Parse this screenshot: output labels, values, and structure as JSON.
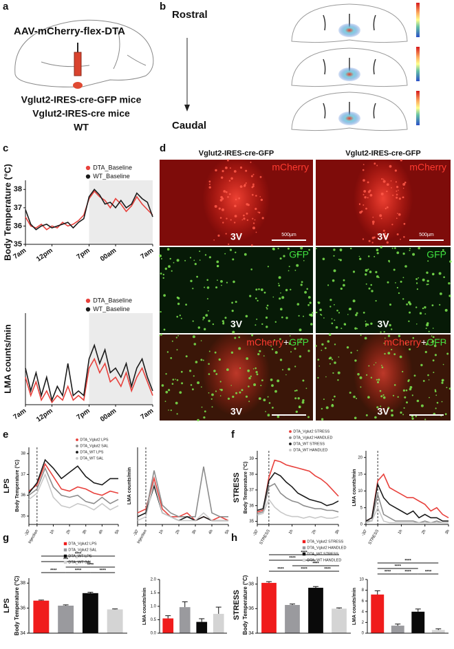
{
  "panel_labels": [
    "a",
    "b",
    "c",
    "d",
    "e",
    "f",
    "g",
    "h"
  ],
  "schematic": {
    "virus": "AAV-mCherry-flex-DTA",
    "mice": [
      "Vglut2-IRES-cre-GFP mice",
      "Vglut2-IRES-cre mice",
      "WT"
    ]
  },
  "sections": {
    "top": "Rostral",
    "bottom": "Caudal"
  },
  "histology": {
    "columns": [
      "Vglut2-IRES-cre-GFP",
      "Vglut2-IRES-cre-GFP"
    ],
    "channels": [
      "mCherry",
      "GFP"
    ],
    "plus": "+",
    "landmark": "3V",
    "scale_bar": "500µm"
  },
  "chart_data": [
    {
      "type": "line",
      "ylabel": "Body Temperature (°C)",
      "xlim": [
        0,
        24
      ],
      "ylim": [
        35,
        38.5
      ],
      "xticks": [
        {
          "value": 0,
          "label": "7am"
        },
        {
          "value": 5,
          "label": "12pm"
        },
        {
          "value": 12,
          "label": "7pm"
        },
        {
          "value": 17,
          "label": "00am"
        },
        {
          "value": 24,
          "label": "7am"
        }
      ],
      "yticks": [
        35,
        36,
        37,
        38
      ],
      "shade": [
        12,
        24
      ],
      "x": [
        0,
        1,
        2,
        3,
        4,
        5,
        6,
        7,
        8,
        9,
        10,
        11,
        12,
        13,
        14,
        15,
        16,
        17,
        18,
        19,
        20,
        21,
        22,
        23,
        24
      ],
      "series": [
        {
          "name": "DTA_Baseline",
          "color": "#e8413c",
          "values": [
            36.5,
            36.0,
            35.9,
            36.1,
            35.8,
            36.0,
            35.9,
            36.2,
            36.0,
            36.1,
            36.3,
            36.6,
            37.5,
            37.9,
            37.6,
            37.4,
            37.0,
            37.5,
            37.2,
            36.8,
            37.1,
            37.6,
            37.2,
            36.9,
            36.6
          ]
        },
        {
          "name": "WT_Baseline",
          "color": "#1a1a1a",
          "values": [
            36.9,
            36.1,
            35.8,
            36.0,
            36.1,
            35.9,
            36.0,
            36.1,
            36.2,
            35.9,
            36.2,
            36.4,
            37.6,
            38.0,
            37.7,
            37.2,
            37.3,
            37.0,
            37.4,
            37.0,
            37.2,
            37.8,
            37.5,
            37.3,
            36.5
          ]
        }
      ]
    },
    {
      "type": "line",
      "ylabel": "LMA counts/min",
      "xlim": [
        0,
        24
      ],
      "ylim": [
        0,
        20
      ],
      "xticks": [
        {
          "value": 0,
          "label": "7am"
        },
        {
          "value": 5,
          "label": "12pm"
        },
        {
          "value": 12,
          "label": "7pm"
        },
        {
          "value": 17,
          "label": "00am"
        },
        {
          "value": 24,
          "label": "7am"
        }
      ],
      "shade": [
        12,
        24
      ],
      "x": [
        0,
        1,
        2,
        3,
        4,
        5,
        6,
        7,
        8,
        9,
        10,
        11,
        12,
        13,
        14,
        15,
        16,
        17,
        18,
        19,
        20,
        21,
        22,
        23,
        24
      ],
      "series": [
        {
          "name": "DTA_Baseline",
          "color": "#e8413c",
          "values": [
            6,
            2,
            5,
            1,
            3,
            0.5,
            2,
            1,
            4,
            1,
            2,
            1,
            8,
            10,
            7,
            9,
            5,
            6,
            4,
            7,
            3,
            6,
            8,
            5,
            2
          ]
        },
        {
          "name": "WT_Baseline",
          "color": "#1a1a1a",
          "values": [
            8,
            3,
            7,
            2,
            6,
            1,
            4,
            2,
            9,
            2,
            3,
            2,
            10,
            13,
            9,
            12,
            7,
            8,
            6,
            9,
            4,
            8,
            10,
            6,
            3
          ]
        }
      ]
    },
    {
      "type": "line",
      "side_label": "LPS",
      "ylabel": "Body Temperature (°C)",
      "xlim": [
        -30,
        300
      ],
      "ylim": [
        34.6,
        38.3
      ],
      "xticks": [
        {
          "value": -30,
          "label": "-30'"
        },
        {
          "value": 0,
          "label": "Injection"
        },
        {
          "value": 60,
          "label": "1h"
        },
        {
          "value": 120,
          "label": "2h"
        },
        {
          "value": 180,
          "label": "3h"
        },
        {
          "value": 240,
          "label": "4h"
        },
        {
          "value": 300,
          "label": "5h"
        }
      ],
      "yticks": [
        35,
        36,
        37,
        38
      ],
      "vline": 0,
      "x": [
        -30,
        0,
        30,
        60,
        90,
        120,
        150,
        180,
        210,
        240,
        270,
        300
      ],
      "series": [
        {
          "name": "DTA_Vglut2 LPS",
          "color": "#e8413c",
          "values": [
            36.2,
            36.5,
            37.5,
            36.9,
            36.3,
            36.2,
            36.4,
            36.3,
            36.1,
            36.0,
            36.2,
            36.1
          ]
        },
        {
          "name": "DTA_Vglut2 SAL",
          "color": "#8c8c8c",
          "values": [
            36.0,
            36.3,
            37.3,
            36.4,
            36.0,
            35.9,
            36.0,
            35.7,
            35.6,
            35.9,
            35.6,
            35.8
          ]
        },
        {
          "name": "DTA_WT LPS",
          "color": "#1a1a1a",
          "values": [
            36.1,
            36.6,
            37.7,
            37.3,
            36.8,
            37.1,
            37.4,
            36.9,
            36.6,
            36.5,
            36.8,
            36.8
          ]
        },
        {
          "name": "DTA_WT SAL",
          "color": "#c8c8c8",
          "values": [
            35.8,
            36.1,
            37.0,
            35.9,
            35.5,
            35.4,
            35.6,
            35.5,
            35.3,
            35.6,
            35.3,
            35.5
          ]
        }
      ]
    },
    {
      "type": "line",
      "ylabel": "LMA counts/min",
      "xlim": [
        -30,
        300
      ],
      "ylim": [
        0,
        20
      ],
      "xticks": [
        {
          "value": -30,
          "label": "-30'"
        },
        {
          "value": 0,
          "label": "Injection"
        },
        {
          "value": 60,
          "label": "1h"
        },
        {
          "value": 120,
          "label": "2h"
        },
        {
          "value": 180,
          "label": "3h"
        },
        {
          "value": 240,
          "label": "4h"
        },
        {
          "value": 300,
          "label": "5h"
        }
      ],
      "vline": 0,
      "x": [
        -30,
        0,
        30,
        60,
        90,
        120,
        150,
        180,
        210,
        240,
        270,
        300
      ],
      "series": [
        {
          "color": "#e8413c",
          "values": [
            3,
            4,
            12,
            4,
            2,
            2,
            3,
            1,
            2,
            1,
            2,
            1
          ]
        },
        {
          "color": "#8c8c8c",
          "values": [
            2,
            3,
            14,
            5,
            3,
            2,
            2,
            2,
            15,
            3,
            2,
            2
          ]
        },
        {
          "color": "#1a1a1a",
          "values": [
            2,
            3,
            10,
            3,
            2,
            1,
            2,
            1,
            2,
            1,
            1,
            1
          ]
        },
        {
          "color": "#c8c8c8",
          "values": [
            1,
            2,
            11,
            3,
            2,
            1,
            1,
            1,
            3,
            1,
            1,
            1
          ]
        }
      ]
    },
    {
      "type": "line",
      "side_label": "STRESS",
      "ylabel": "Body Temperature (°C)",
      "xlim": [
        -30,
        180
      ],
      "ylim": [
        34.8,
        39.5
      ],
      "xticks": [
        {
          "value": -30,
          "label": "-30'"
        },
        {
          "value": 0,
          "label": "STRESS"
        },
        {
          "value": 60,
          "label": "1h"
        },
        {
          "value": 120,
          "label": "2h"
        },
        {
          "value": 180,
          "label": "3h"
        }
      ],
      "yticks": [
        35,
        36,
        37,
        38,
        39
      ],
      "vline": 0,
      "x": [
        -30,
        -15,
        0,
        15,
        30,
        45,
        60,
        75,
        90,
        105,
        120,
        135,
        150,
        165,
        180
      ],
      "series": [
        {
          "name": "DTA_Vglut2 STRESS",
          "color": "#e8413c",
          "values": [
            35.6,
            35.7,
            37.8,
            38.9,
            38.8,
            38.6,
            38.5,
            38.4,
            38.3,
            38.2,
            37.9,
            37.7,
            37.4,
            37.0,
            36.6
          ]
        },
        {
          "name": "DTA_Vglut2 HANDLED",
          "color": "#8c8c8c",
          "values": [
            35.5,
            35.6,
            37.2,
            37.4,
            36.8,
            36.5,
            36.3,
            36.2,
            36.0,
            35.9,
            35.8,
            35.8,
            35.7,
            35.7,
            35.6
          ]
        },
        {
          "name": "DTA_WT STRESS",
          "color": "#1a1a1a",
          "values": [
            35.7,
            35.8,
            37.6,
            38.1,
            37.9,
            37.5,
            37.2,
            36.8,
            36.6,
            36.4,
            36.3,
            36.2,
            36.0,
            36.1,
            36.3
          ]
        },
        {
          "name": "DTA_WT HANDLED",
          "color": "#c8c8c8",
          "values": [
            35.4,
            35.5,
            36.4,
            35.9,
            35.6,
            35.4,
            35.3,
            35.3,
            35.2,
            35.3,
            35.2,
            35.3,
            35.2,
            35.2,
            35.3
          ]
        }
      ]
    },
    {
      "type": "line",
      "ylabel": "LMA counts/min",
      "xlim": [
        -30,
        180
      ],
      "ylim": [
        0,
        22
      ],
      "xticks": [
        {
          "value": -30,
          "label": "-30'"
        },
        {
          "value": 0,
          "label": "STRESS"
        },
        {
          "value": 60,
          "label": "1h"
        },
        {
          "value": 120,
          "label": "2h"
        },
        {
          "value": 180,
          "label": "3h"
        }
      ],
      "yticks": [
        0,
        5,
        10,
        15,
        20
      ],
      "vline": 0,
      "x": [
        -30,
        -15,
        0,
        15,
        30,
        45,
        60,
        75,
        90,
        105,
        120,
        135,
        150,
        165,
        180
      ],
      "series": [
        {
          "color": "#e8413c",
          "values": [
            1,
            2,
            13,
            15,
            11,
            10,
            9,
            8,
            8,
            7,
            6,
            4,
            5,
            3,
            2
          ]
        },
        {
          "color": "#8c8c8c",
          "values": [
            1,
            1,
            9,
            3,
            2,
            1,
            1,
            1,
            1,
            0.5,
            1,
            0.5,
            1,
            0.5,
            0.5
          ]
        },
        {
          "color": "#1a1a1a",
          "values": [
            1,
            2,
            12,
            8,
            6,
            5,
            4,
            3,
            4,
            2,
            3,
            2,
            2,
            1,
            1
          ]
        },
        {
          "color": "#c8c8c8",
          "values": [
            0.5,
            1,
            5,
            1,
            0.5,
            0.5,
            0.5,
            0.5,
            0.5,
            0.5,
            0.5,
            0.5,
            0.5,
            0.5,
            0.5
          ]
        }
      ]
    },
    {
      "type": "bar",
      "side_label": "LPS",
      "ylabel": "Body Temperature (°C)",
      "ylim": [
        34,
        38.4
      ],
      "yticks": [
        34,
        36,
        38
      ],
      "categories": [
        "DTA_Vglut2 LPS",
        "DTA_Vglut2 SAL",
        "DTA_WT LPS",
        "DTA_WT SAL"
      ],
      "colors": [
        "#f01c1c",
        "#9a9a9e",
        "#0a0a0a",
        "#d4d4d4"
      ],
      "values": [
        36.6,
        36.2,
        37.2,
        35.9
      ],
      "errors": [
        0.05,
        0.06,
        0.07,
        0.04
      ],
      "brackets": [
        {
          "from": 0,
          "to": 3,
          "label": "****"
        },
        {
          "from": 0,
          "to": 2,
          "label": "***"
        },
        {
          "from": 1,
          "to": 3,
          "label": "****"
        },
        {
          "from": 0,
          "to": 1,
          "label": "****"
        },
        {
          "from": 1,
          "to": 2,
          "label": "****"
        },
        {
          "from": 2,
          "to": 3,
          "label": "****"
        }
      ]
    },
    {
      "type": "bar",
      "ylabel": "LMA counts/min",
      "ylim": [
        0,
        2.0
      ],
      "yticks": [
        {
          "value": 0,
          "label": "0.0"
        },
        {
          "value": 0.5,
          "label": "0.5"
        },
        {
          "value": 1,
          "label": "1.0"
        },
        {
          "value": 1.5,
          "label": "1.5"
        },
        {
          "value": 2,
          "label": "2.0"
        }
      ],
      "colors": [
        "#f01c1c",
        "#9a9a9e",
        "#0a0a0a",
        "#d4d4d4"
      ],
      "values": [
        0.55,
        0.97,
        0.42,
        0.72
      ],
      "errors": [
        0.1,
        0.2,
        0.12,
        0.25
      ]
    },
    {
      "type": "bar",
      "side_label": "STRESS",
      "ylabel": "Body Temperature (°C)",
      "ylim": [
        34,
        38.6
      ],
      "yticks": [
        34,
        36,
        38
      ],
      "categories": [
        "DTA_Vglut2 STRESS",
        "DTA_Vglut2 HANDLED",
        "DTA_WT STRESS",
        "DTA_WT HANDLED"
      ],
      "colors": [
        "#f01c1c",
        "#9a9a9e",
        "#0a0a0a",
        "#d4d4d4"
      ],
      "values": [
        38.1,
        36.3,
        37.7,
        36.0
      ],
      "errors": [
        0.1,
        0.08,
        0.1,
        0.06
      ],
      "brackets": [
        {
          "from": 0,
          "to": 3,
          "label": "****"
        },
        {
          "from": 0,
          "to": 2,
          "label": "****"
        },
        {
          "from": 1,
          "to": 3,
          "label": "****"
        },
        {
          "from": 0,
          "to": 1,
          "label": "****"
        },
        {
          "from": 1,
          "to": 2,
          "label": "****"
        },
        {
          "from": 2,
          "to": 3,
          "label": "****"
        }
      ]
    },
    {
      "type": "bar",
      "ylabel": "LMA counts/min",
      "ylim": [
        0,
        10
      ],
      "yticks": [
        0,
        2,
        4,
        6,
        8,
        10
      ],
      "colors": [
        "#f01c1c",
        "#9a9a9e",
        "#0a0a0a",
        "#d4d4d4"
      ],
      "values": [
        7.2,
        1.4,
        4.0,
        0.6
      ],
      "errors": [
        0.7,
        0.3,
        0.5,
        0.2
      ],
      "brackets": [
        {
          "from": 0,
          "to": 3,
          "label": "****"
        },
        {
          "from": 0,
          "to": 2,
          "label": "****"
        },
        {
          "from": 0,
          "to": 1,
          "label": "****"
        },
        {
          "from": 1,
          "to": 2,
          "label": "****"
        },
        {
          "from": 2,
          "to": 3,
          "label": "****"
        }
      ]
    }
  ]
}
